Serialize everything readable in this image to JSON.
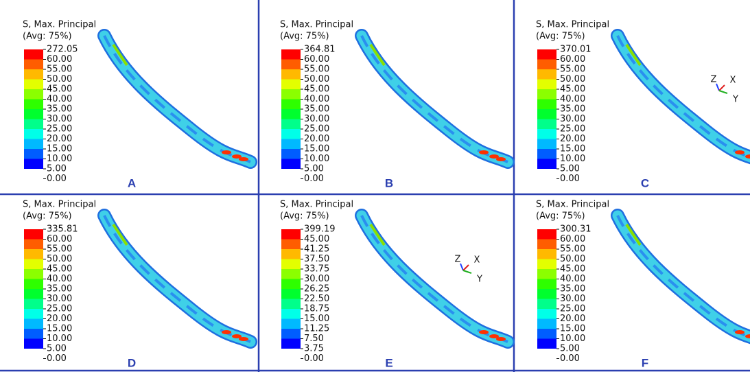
{
  "panels": [
    {
      "title": "S, Max. Principal",
      "subtitle": "(Avg: 75%)",
      "legend": [
        "272.05",
        "60.00",
        "55.00",
        "50.00",
        "45.00",
        "40.00",
        "35.00",
        "30.00",
        "25.00",
        "20.00",
        "15.00",
        "10.00",
        "5.00",
        "0.00"
      ],
      "letter": "A"
    },
    {
      "title": "S, Max. Principal",
      "subtitle": "(Avg: 75%)",
      "legend": [
        "364.81",
        "60.00",
        "55.00",
        "50.00",
        "45.00",
        "40.00",
        "35.00",
        "30.00",
        "25.00",
        "20.00",
        "15.00",
        "10.00",
        "5.00",
        "0.00"
      ],
      "letter": "B"
    },
    {
      "title": "S, Max. Principal",
      "subtitle": "(Avg: 75%)",
      "legend": [
        "370.01",
        "60.00",
        "55.00",
        "50.00",
        "45.00",
        "40.00",
        "35.00",
        "30.00",
        "25.00",
        "20.00",
        "15.00",
        "10.00",
        "5.00",
        "0.00"
      ],
      "letter": "C",
      "triad": [
        "Z",
        "X",
        "Y"
      ]
    },
    {
      "title": "S, Max. Principal",
      "subtitle": "(Avg: 75%)",
      "legend": [
        "335.81",
        "60.00",
        "55.00",
        "50.00",
        "45.00",
        "40.00",
        "35.00",
        "30.00",
        "25.00",
        "20.00",
        "15.00",
        "10.00",
        "5.00",
        "0.00"
      ],
      "letter": "D"
    },
    {
      "title": "S, Max. Principal",
      "subtitle": "(Avg: 75%)",
      "legend": [
        "399.19",
        "45.00",
        "41.25",
        "37.50",
        "33.75",
        "30.00",
        "26.25",
        "22.50",
        "18.75",
        "15.00",
        "11.25",
        "7.50",
        "3.75",
        "0.00"
      ],
      "letter": "E",
      "triad": [
        "Z",
        "X",
        "Y"
      ]
    },
    {
      "title": "S, Max. Principal",
      "subtitle": "(Avg: 75%)",
      "legend": [
        "300.31",
        "60.00",
        "55.00",
        "50.00",
        "45.00",
        "40.00",
        "35.00",
        "30.00",
        "25.00",
        "20.00",
        "15.00",
        "10.00",
        "5.00",
        "0.00"
      ],
      "letter": "F"
    }
  ]
}
